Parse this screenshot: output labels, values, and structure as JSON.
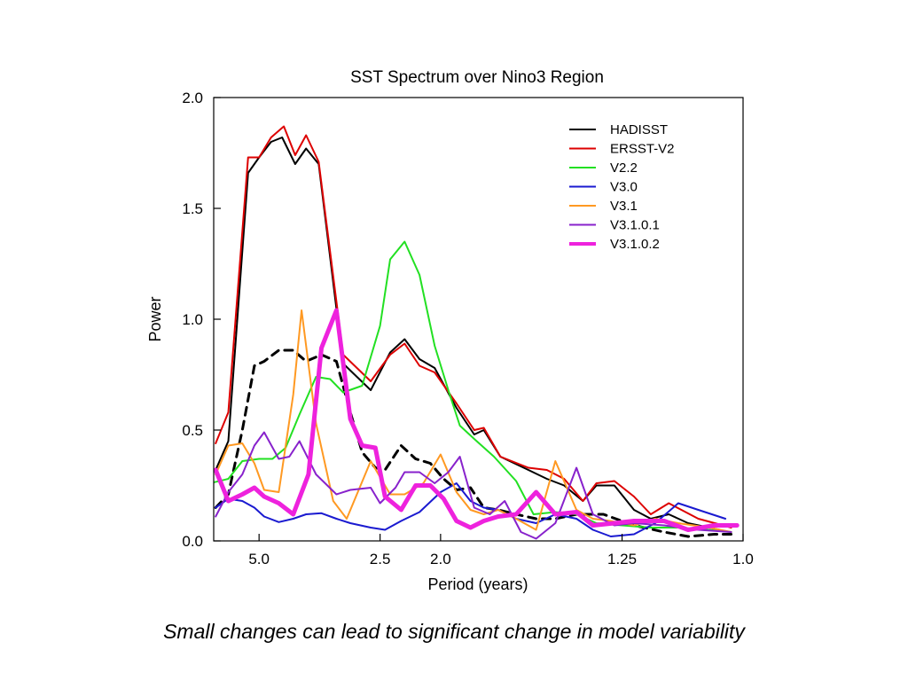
{
  "caption": "Small changes can lead to significant change in model variability",
  "chart_data": {
    "type": "line",
    "title": "SST Spectrum over Nino3 Region",
    "xlabel": "Period (years)",
    "ylabel": "Power",
    "x_scale": "reciprocal (frequency axis, period labels)",
    "xlim": [
      8.0,
      1.0
    ],
    "ylim": [
      0,
      2.0
    ],
    "y_ticks": [
      "0.0",
      "0.5",
      "1.0",
      "1.5",
      "2.0"
    ],
    "x_ticks": [
      {
        "label": "5.0",
        "value": 5.0
      },
      {
        "label": "2.5",
        "value": 2.5
      },
      {
        "label": "2.0",
        "value": 2.0
      },
      {
        "label": "1.25",
        "value": 1.25
      },
      {
        "label": "1.0",
        "value": 1.0
      }
    ],
    "grid": false,
    "legend_position": "top-right",
    "series": [
      {
        "name": "HADISST",
        "color": "#000000",
        "width": 2,
        "dash": false,
        "points": [
          [
            7.8,
            0.32
          ],
          [
            6.7,
            0.45
          ],
          [
            5.5,
            1.66
          ],
          [
            5.0,
            1.73
          ],
          [
            4.55,
            1.8
          ],
          [
            4.2,
            1.82
          ],
          [
            3.85,
            1.7
          ],
          [
            3.6,
            1.77
          ],
          [
            3.35,
            1.7
          ],
          [
            2.95,
            0.8
          ],
          [
            2.6,
            0.68
          ],
          [
            2.4,
            0.85
          ],
          [
            2.27,
            0.91
          ],
          [
            2.15,
            0.82
          ],
          [
            2.04,
            0.78
          ],
          [
            1.9,
            0.6
          ],
          [
            1.8,
            0.48
          ],
          [
            1.75,
            0.5
          ],
          [
            1.67,
            0.38
          ],
          [
            1.55,
            0.32
          ],
          [
            1.48,
            0.28
          ],
          [
            1.42,
            0.25
          ],
          [
            1.36,
            0.18
          ],
          [
            1.32,
            0.25
          ],
          [
            1.27,
            0.25
          ],
          [
            1.22,
            0.14
          ],
          [
            1.18,
            0.1
          ],
          [
            1.14,
            0.12
          ],
          [
            1.1,
            0.08
          ],
          [
            1.04,
            0.05
          ]
        ]
      },
      {
        "name": "ERSST-V2",
        "color": "#dd0000",
        "width": 2,
        "dash": false,
        "points": [
          [
            7.8,
            0.44
          ],
          [
            6.7,
            0.58
          ],
          [
            5.5,
            1.73
          ],
          [
            5.0,
            1.73
          ],
          [
            4.55,
            1.82
          ],
          [
            4.15,
            1.87
          ],
          [
            3.85,
            1.74
          ],
          [
            3.6,
            1.83
          ],
          [
            3.35,
            1.71
          ],
          [
            2.95,
            0.84
          ],
          [
            2.6,
            0.72
          ],
          [
            2.4,
            0.84
          ],
          [
            2.27,
            0.89
          ],
          [
            2.15,
            0.79
          ],
          [
            2.04,
            0.76
          ],
          [
            1.9,
            0.62
          ],
          [
            1.8,
            0.5
          ],
          [
            1.75,
            0.51
          ],
          [
            1.67,
            0.38
          ],
          [
            1.55,
            0.33
          ],
          [
            1.48,
            0.32
          ],
          [
            1.42,
            0.28
          ],
          [
            1.36,
            0.18
          ],
          [
            1.32,
            0.26
          ],
          [
            1.27,
            0.27
          ],
          [
            1.22,
            0.2
          ],
          [
            1.18,
            0.12
          ],
          [
            1.14,
            0.17
          ],
          [
            1.08,
            0.1
          ],
          [
            1.02,
            0.06
          ]
        ]
      },
      {
        "name": "V2.2",
        "color": "#22e022",
        "width": 2,
        "dash": false,
        "points": [
          [
            8.4,
            0.26
          ],
          [
            6.7,
            0.28
          ],
          [
            5.8,
            0.36
          ],
          [
            5.0,
            0.37
          ],
          [
            4.5,
            0.37
          ],
          [
            4.1,
            0.42
          ],
          [
            3.75,
            0.57
          ],
          [
            3.4,
            0.74
          ],
          [
            3.15,
            0.73
          ],
          [
            2.95,
            0.67
          ],
          [
            2.7,
            0.7
          ],
          [
            2.5,
            0.97
          ],
          [
            2.4,
            1.27
          ],
          [
            2.27,
            1.35
          ],
          [
            2.15,
            1.2
          ],
          [
            2.04,
            0.88
          ],
          [
            1.95,
            0.68
          ],
          [
            1.88,
            0.52
          ],
          [
            1.8,
            0.46
          ],
          [
            1.7,
            0.38
          ],
          [
            1.6,
            0.27
          ],
          [
            1.53,
            0.12
          ],
          [
            1.45,
            0.13
          ],
          [
            1.38,
            0.12
          ],
          [
            1.32,
            0.08
          ],
          [
            1.25,
            0.07
          ],
          [
            1.18,
            0.06
          ],
          [
            1.12,
            0.06
          ],
          [
            1.06,
            0.05
          ],
          [
            1.02,
            0.04
          ]
        ]
      },
      {
        "name": "V3.0",
        "color": "#1a1ad0",
        "width": 2,
        "dash": false,
        "points": [
          [
            7.8,
            0.15
          ],
          [
            6.7,
            0.19
          ],
          [
            5.8,
            0.18
          ],
          [
            5.2,
            0.15
          ],
          [
            4.8,
            0.11
          ],
          [
            4.3,
            0.085
          ],
          [
            3.9,
            0.1
          ],
          [
            3.6,
            0.12
          ],
          [
            3.3,
            0.125
          ],
          [
            3.05,
            0.1
          ],
          [
            2.85,
            0.08
          ],
          [
            2.6,
            0.06
          ],
          [
            2.45,
            0.05
          ],
          [
            2.3,
            0.09
          ],
          [
            2.15,
            0.13
          ],
          [
            2.0,
            0.22
          ],
          [
            1.9,
            0.26
          ],
          [
            1.82,
            0.18
          ],
          [
            1.75,
            0.15
          ],
          [
            1.68,
            0.14
          ],
          [
            1.6,
            0.1
          ],
          [
            1.52,
            0.08
          ],
          [
            1.45,
            0.12
          ],
          [
            1.38,
            0.1
          ],
          [
            1.33,
            0.05
          ],
          [
            1.28,
            0.02
          ],
          [
            1.22,
            0.03
          ],
          [
            1.17,
            0.08
          ],
          [
            1.12,
            0.17
          ],
          [
            1.08,
            0.14
          ],
          [
            1.03,
            0.1
          ]
        ]
      },
      {
        "name": "V3.1",
        "color": "#ff9922",
        "width": 2,
        "dash": false,
        "points": [
          [
            7.8,
            0.3
          ],
          [
            6.7,
            0.43
          ],
          [
            5.8,
            0.44
          ],
          [
            5.2,
            0.35
          ],
          [
            4.8,
            0.23
          ],
          [
            4.3,
            0.22
          ],
          [
            3.9,
            0.66
          ],
          [
            3.7,
            1.04
          ],
          [
            3.4,
            0.53
          ],
          [
            3.1,
            0.18
          ],
          [
            2.9,
            0.1
          ],
          [
            2.6,
            0.36
          ],
          [
            2.4,
            0.21
          ],
          [
            2.27,
            0.21
          ],
          [
            2.12,
            0.26
          ],
          [
            2.0,
            0.39
          ],
          [
            1.9,
            0.22
          ],
          [
            1.82,
            0.14
          ],
          [
            1.75,
            0.12
          ],
          [
            1.68,
            0.14
          ],
          [
            1.6,
            0.1
          ],
          [
            1.52,
            0.05
          ],
          [
            1.45,
            0.36
          ],
          [
            1.38,
            0.14
          ],
          [
            1.33,
            0.1
          ],
          [
            1.28,
            0.09
          ],
          [
            1.22,
            0.07
          ],
          [
            1.17,
            0.1
          ],
          [
            1.12,
            0.08
          ],
          [
            1.06,
            0.06
          ],
          [
            1.02,
            0.04
          ]
        ]
      },
      {
        "name": "V3.1.0.1",
        "color": "#8822cc",
        "width": 2,
        "dash": false,
        "points": [
          [
            7.8,
            0.11
          ],
          [
            6.7,
            0.22
          ],
          [
            5.8,
            0.3
          ],
          [
            5.2,
            0.43
          ],
          [
            4.8,
            0.49
          ],
          [
            4.3,
            0.37
          ],
          [
            4.0,
            0.38
          ],
          [
            3.75,
            0.45
          ],
          [
            3.4,
            0.3
          ],
          [
            3.05,
            0.21
          ],
          [
            2.85,
            0.23
          ],
          [
            2.6,
            0.24
          ],
          [
            2.5,
            0.17
          ],
          [
            2.35,
            0.24
          ],
          [
            2.27,
            0.31
          ],
          [
            2.15,
            0.31
          ],
          [
            2.04,
            0.26
          ],
          [
            1.95,
            0.31
          ],
          [
            1.88,
            0.38
          ],
          [
            1.8,
            0.15
          ],
          [
            1.72,
            0.12
          ],
          [
            1.65,
            0.18
          ],
          [
            1.58,
            0.04
          ],
          [
            1.52,
            0.01
          ],
          [
            1.45,
            0.08
          ],
          [
            1.38,
            0.33
          ],
          [
            1.33,
            0.12
          ],
          [
            1.27,
            0.07
          ],
          [
            1.22,
            0.08
          ],
          [
            1.15,
            0.07
          ],
          [
            1.08,
            0.05
          ],
          [
            1.02,
            0.04
          ]
        ]
      },
      {
        "name": "V3.1.0.2",
        "color": "#ee22dd",
        "width": 5,
        "dash": false,
        "points": [
          [
            7.8,
            0.32
          ],
          [
            6.7,
            0.18
          ],
          [
            5.8,
            0.21
          ],
          [
            5.2,
            0.24
          ],
          [
            4.8,
            0.2
          ],
          [
            4.3,
            0.17
          ],
          [
            3.9,
            0.12
          ],
          [
            3.55,
            0.3
          ],
          [
            3.3,
            0.87
          ],
          [
            3.05,
            1.04
          ],
          [
            2.85,
            0.55
          ],
          [
            2.7,
            0.43
          ],
          [
            2.55,
            0.42
          ],
          [
            2.45,
            0.2
          ],
          [
            2.3,
            0.14
          ],
          [
            2.18,
            0.25
          ],
          [
            2.07,
            0.25
          ],
          [
            1.98,
            0.19
          ],
          [
            1.9,
            0.09
          ],
          [
            1.82,
            0.06
          ],
          [
            1.75,
            0.09
          ],
          [
            1.68,
            0.11
          ],
          [
            1.6,
            0.12
          ],
          [
            1.52,
            0.22
          ],
          [
            1.45,
            0.12
          ],
          [
            1.38,
            0.13
          ],
          [
            1.33,
            0.07
          ],
          [
            1.27,
            0.08
          ],
          [
            1.22,
            0.09
          ],
          [
            1.15,
            0.09
          ],
          [
            1.1,
            0.05
          ],
          [
            1.05,
            0.07
          ],
          [
            1.01,
            0.07
          ]
        ]
      },
      {
        "name": "",
        "color": "#000000",
        "width": 3,
        "dash": true,
        "points": [
          [
            7.8,
            0.15
          ],
          [
            6.7,
            0.21
          ],
          [
            5.8,
            0.5
          ],
          [
            5.2,
            0.79
          ],
          [
            4.8,
            0.81
          ],
          [
            4.3,
            0.86
          ],
          [
            3.9,
            0.86
          ],
          [
            3.6,
            0.81
          ],
          [
            3.3,
            0.84
          ],
          [
            3.05,
            0.81
          ],
          [
            2.85,
            0.58
          ],
          [
            2.7,
            0.4
          ],
          [
            2.55,
            0.33
          ],
          [
            2.45,
            0.32
          ],
          [
            2.3,
            0.43
          ],
          [
            2.18,
            0.37
          ],
          [
            2.07,
            0.35
          ],
          [
            1.98,
            0.28
          ],
          [
            1.9,
            0.23
          ],
          [
            1.82,
            0.24
          ],
          [
            1.75,
            0.15
          ],
          [
            1.68,
            0.14
          ],
          [
            1.6,
            0.12
          ],
          [
            1.52,
            0.1
          ],
          [
            1.45,
            0.1
          ],
          [
            1.38,
            0.12
          ],
          [
            1.3,
            0.12
          ],
          [
            1.22,
            0.07
          ],
          [
            1.15,
            0.04
          ],
          [
            1.1,
            0.02
          ],
          [
            1.05,
            0.03
          ],
          [
            1.01,
            0.03
          ]
        ]
      }
    ]
  }
}
